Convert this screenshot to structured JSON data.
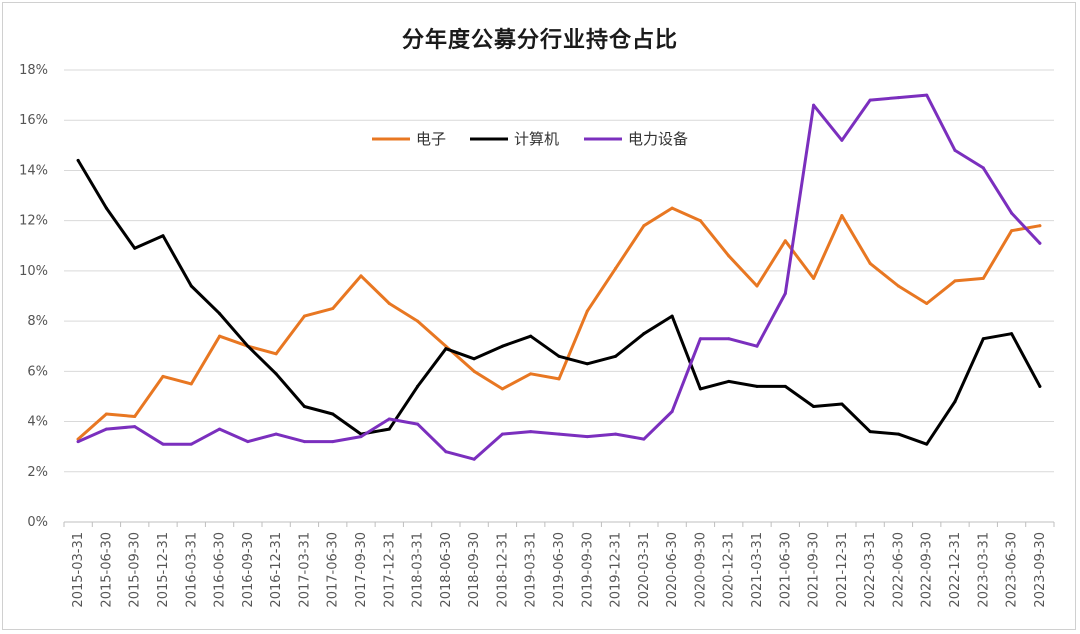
{
  "chart_data": {
    "type": "line",
    "title": "分年度公募分行业持仓占比",
    "xlabel": "",
    "ylabel": "",
    "ylim": [
      0,
      18
    ],
    "y_ticks": [
      "0%",
      "2%",
      "4%",
      "6%",
      "8%",
      "10%",
      "12%",
      "14%",
      "16%",
      "18%"
    ],
    "grid": "horizontal",
    "legend_position": "top-center",
    "categories": [
      "2015-03-31",
      "2015-06-30",
      "2015-09-30",
      "2015-12-31",
      "2016-03-31",
      "2016-06-30",
      "2016-09-30",
      "2016-12-31",
      "2017-03-31",
      "2017-06-30",
      "2017-09-30",
      "2017-12-31",
      "2018-03-31",
      "2018-06-30",
      "2018-09-30",
      "2018-12-31",
      "2019-03-31",
      "2019-06-30",
      "2019-09-30",
      "2019-12-31",
      "2020-03-31",
      "2020-06-30",
      "2020-09-30",
      "2020-12-31",
      "2021-03-31",
      "2021-06-30",
      "2021-09-30",
      "2021-12-31",
      "2022-03-31",
      "2022-06-30",
      "2022-09-30",
      "2022-12-31",
      "2023-03-31",
      "2023-06-30",
      "2023-09-30"
    ],
    "series": [
      {
        "name": "电子",
        "color": "#E87722",
        "values": [
          3.3,
          4.3,
          4.2,
          5.8,
          5.5,
          7.4,
          7.0,
          6.7,
          8.2,
          8.5,
          9.8,
          8.7,
          8.0,
          7.0,
          6.0,
          5.3,
          5.9,
          5.7,
          8.4,
          10.1,
          11.8,
          12.5,
          12.0,
          10.6,
          9.4,
          11.2,
          9.7,
          12.2,
          10.3,
          9.4,
          8.7,
          9.6,
          9.7,
          11.6,
          11.8
        ]
      },
      {
        "name": "计算机",
        "color": "#000000",
        "values": [
          14.4,
          12.5,
          10.9,
          11.4,
          9.4,
          8.3,
          7.0,
          5.9,
          4.6,
          4.3,
          3.5,
          3.7,
          5.4,
          6.9,
          6.5,
          7.0,
          7.4,
          6.6,
          6.3,
          6.6,
          7.5,
          8.2,
          5.3,
          5.6,
          5.4,
          5.4,
          4.6,
          4.7,
          3.6,
          3.5,
          3.1,
          4.8,
          7.3,
          7.5,
          5.4
        ]
      },
      {
        "name": "电力设备",
        "color": "#7B2FBE",
        "values": [
          3.2,
          3.7,
          3.8,
          3.1,
          3.1,
          3.7,
          3.2,
          3.5,
          3.2,
          3.2,
          3.4,
          4.1,
          3.9,
          2.8,
          2.5,
          3.5,
          3.6,
          3.5,
          3.4,
          3.5,
          3.3,
          4.4,
          7.3,
          7.3,
          7.0,
          9.1,
          16.6,
          15.2,
          16.8,
          16.9,
          17.0,
          14.8,
          14.1,
          12.3,
          11.1
        ]
      }
    ]
  }
}
